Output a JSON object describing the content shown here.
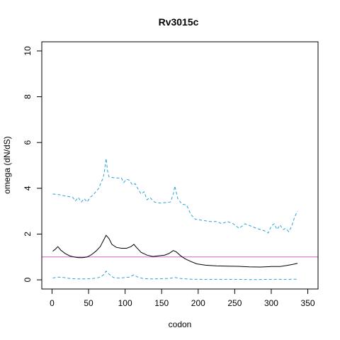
{
  "chart_data": {
    "type": "line",
    "title": "Rv3015c",
    "xlabel": "codon",
    "ylabel": "omega (dN/dS)",
    "xlim": [
      0,
      350
    ],
    "ylim": [
      0,
      10
    ],
    "x_ticks": [
      0,
      50,
      100,
      150,
      200,
      250,
      300,
      350
    ],
    "y_ticks": [
      0,
      2,
      4,
      6,
      8,
      10
    ],
    "grid": false,
    "legend": "none",
    "reference_line": {
      "y": 1,
      "color": "#cc66cc"
    },
    "colors": {
      "estimate": "#000000",
      "upper": "#29a3dc",
      "lower": "#29a3dc"
    },
    "series": [
      {
        "role": "estimate",
        "style": "solid",
        "points": [
          [
            1,
            1.25
          ],
          [
            5,
            1.35
          ],
          [
            8,
            1.45
          ],
          [
            12,
            1.3
          ],
          [
            18,
            1.15
          ],
          [
            24,
            1.05
          ],
          [
            30,
            1.0
          ],
          [
            36,
            0.97
          ],
          [
            42,
            0.97
          ],
          [
            48,
            1.0
          ],
          [
            54,
            1.1
          ],
          [
            60,
            1.25
          ],
          [
            66,
            1.45
          ],
          [
            70,
            1.7
          ],
          [
            74,
            1.95
          ],
          [
            78,
            1.8
          ],
          [
            82,
            1.55
          ],
          [
            88,
            1.42
          ],
          [
            95,
            1.38
          ],
          [
            102,
            1.38
          ],
          [
            108,
            1.45
          ],
          [
            112,
            1.55
          ],
          [
            116,
            1.4
          ],
          [
            122,
            1.2
          ],
          [
            130,
            1.08
          ],
          [
            138,
            1.02
          ],
          [
            146,
            1.05
          ],
          [
            154,
            1.08
          ],
          [
            160,
            1.15
          ],
          [
            166,
            1.28
          ],
          [
            170,
            1.22
          ],
          [
            176,
            1.05
          ],
          [
            182,
            0.92
          ],
          [
            190,
            0.8
          ],
          [
            198,
            0.7
          ],
          [
            210,
            0.64
          ],
          [
            225,
            0.61
          ],
          [
            240,
            0.6
          ],
          [
            255,
            0.59
          ],
          [
            270,
            0.57
          ],
          [
            285,
            0.56
          ],
          [
            300,
            0.58
          ],
          [
            312,
            0.58
          ],
          [
            320,
            0.62
          ],
          [
            330,
            0.68
          ],
          [
            336,
            0.72
          ]
        ]
      },
      {
        "role": "upper",
        "style": "dashed",
        "points": [
          [
            1,
            3.75
          ],
          [
            10,
            3.72
          ],
          [
            20,
            3.65
          ],
          [
            28,
            3.62
          ],
          [
            32,
            3.45
          ],
          [
            36,
            3.6
          ],
          [
            40,
            3.4
          ],
          [
            44,
            3.55
          ],
          [
            48,
            3.4
          ],
          [
            52,
            3.6
          ],
          [
            56,
            3.7
          ],
          [
            60,
            3.85
          ],
          [
            64,
            4.0
          ],
          [
            67,
            4.25
          ],
          [
            70,
            4.45
          ],
          [
            72,
            4.8
          ],
          [
            74,
            5.3
          ],
          [
            76,
            4.75
          ],
          [
            78,
            4.5
          ],
          [
            86,
            4.45
          ],
          [
            95,
            4.45
          ],
          [
            98,
            4.25
          ],
          [
            102,
            4.4
          ],
          [
            106,
            4.35
          ],
          [
            110,
            4.15
          ],
          [
            114,
            4.2
          ],
          [
            118,
            3.95
          ],
          [
            122,
            3.75
          ],
          [
            126,
            3.85
          ],
          [
            130,
            3.5
          ],
          [
            134,
            3.6
          ],
          [
            140,
            3.4
          ],
          [
            148,
            3.35
          ],
          [
            156,
            3.38
          ],
          [
            162,
            3.4
          ],
          [
            166,
            3.75
          ],
          [
            168,
            4.1
          ],
          [
            172,
            3.55
          ],
          [
            178,
            3.3
          ],
          [
            184,
            3.28
          ],
          [
            190,
            2.85
          ],
          [
            196,
            2.65
          ],
          [
            206,
            2.6
          ],
          [
            216,
            2.55
          ],
          [
            226,
            2.55
          ],
          [
            232,
            2.45
          ],
          [
            240,
            2.55
          ],
          [
            248,
            2.45
          ],
          [
            256,
            2.25
          ],
          [
            264,
            2.45
          ],
          [
            272,
            2.35
          ],
          [
            280,
            2.25
          ],
          [
            290,
            2.15
          ],
          [
            296,
            2.05
          ],
          [
            300,
            2.35
          ],
          [
            304,
            2.45
          ],
          [
            308,
            2.2
          ],
          [
            312,
            2.4
          ],
          [
            316,
            2.2
          ],
          [
            320,
            2.25
          ],
          [
            324,
            2.1
          ],
          [
            328,
            2.35
          ],
          [
            332,
            2.75
          ],
          [
            336,
            3.0
          ]
        ]
      },
      {
        "role": "lower",
        "style": "dashed",
        "points": [
          [
            1,
            0.08
          ],
          [
            8,
            0.12
          ],
          [
            16,
            0.1
          ],
          [
            24,
            0.06
          ],
          [
            34,
            0.04
          ],
          [
            44,
            0.04
          ],
          [
            54,
            0.05
          ],
          [
            64,
            0.1
          ],
          [
            70,
            0.2
          ],
          [
            74,
            0.38
          ],
          [
            78,
            0.25
          ],
          [
            84,
            0.1
          ],
          [
            92,
            0.08
          ],
          [
            100,
            0.1
          ],
          [
            106,
            0.12
          ],
          [
            112,
            0.22
          ],
          [
            116,
            0.14
          ],
          [
            124,
            0.06
          ],
          [
            134,
            0.04
          ],
          [
            148,
            0.05
          ],
          [
            160,
            0.06
          ],
          [
            168,
            0.1
          ],
          [
            176,
            0.06
          ],
          [
            188,
            0.03
          ],
          [
            200,
            0.02
          ],
          [
            225,
            0.02
          ],
          [
            250,
            0.02
          ],
          [
            275,
            0.01
          ],
          [
            300,
            0.02
          ],
          [
            320,
            0.02
          ],
          [
            336,
            0.03
          ]
        ]
      }
    ]
  }
}
